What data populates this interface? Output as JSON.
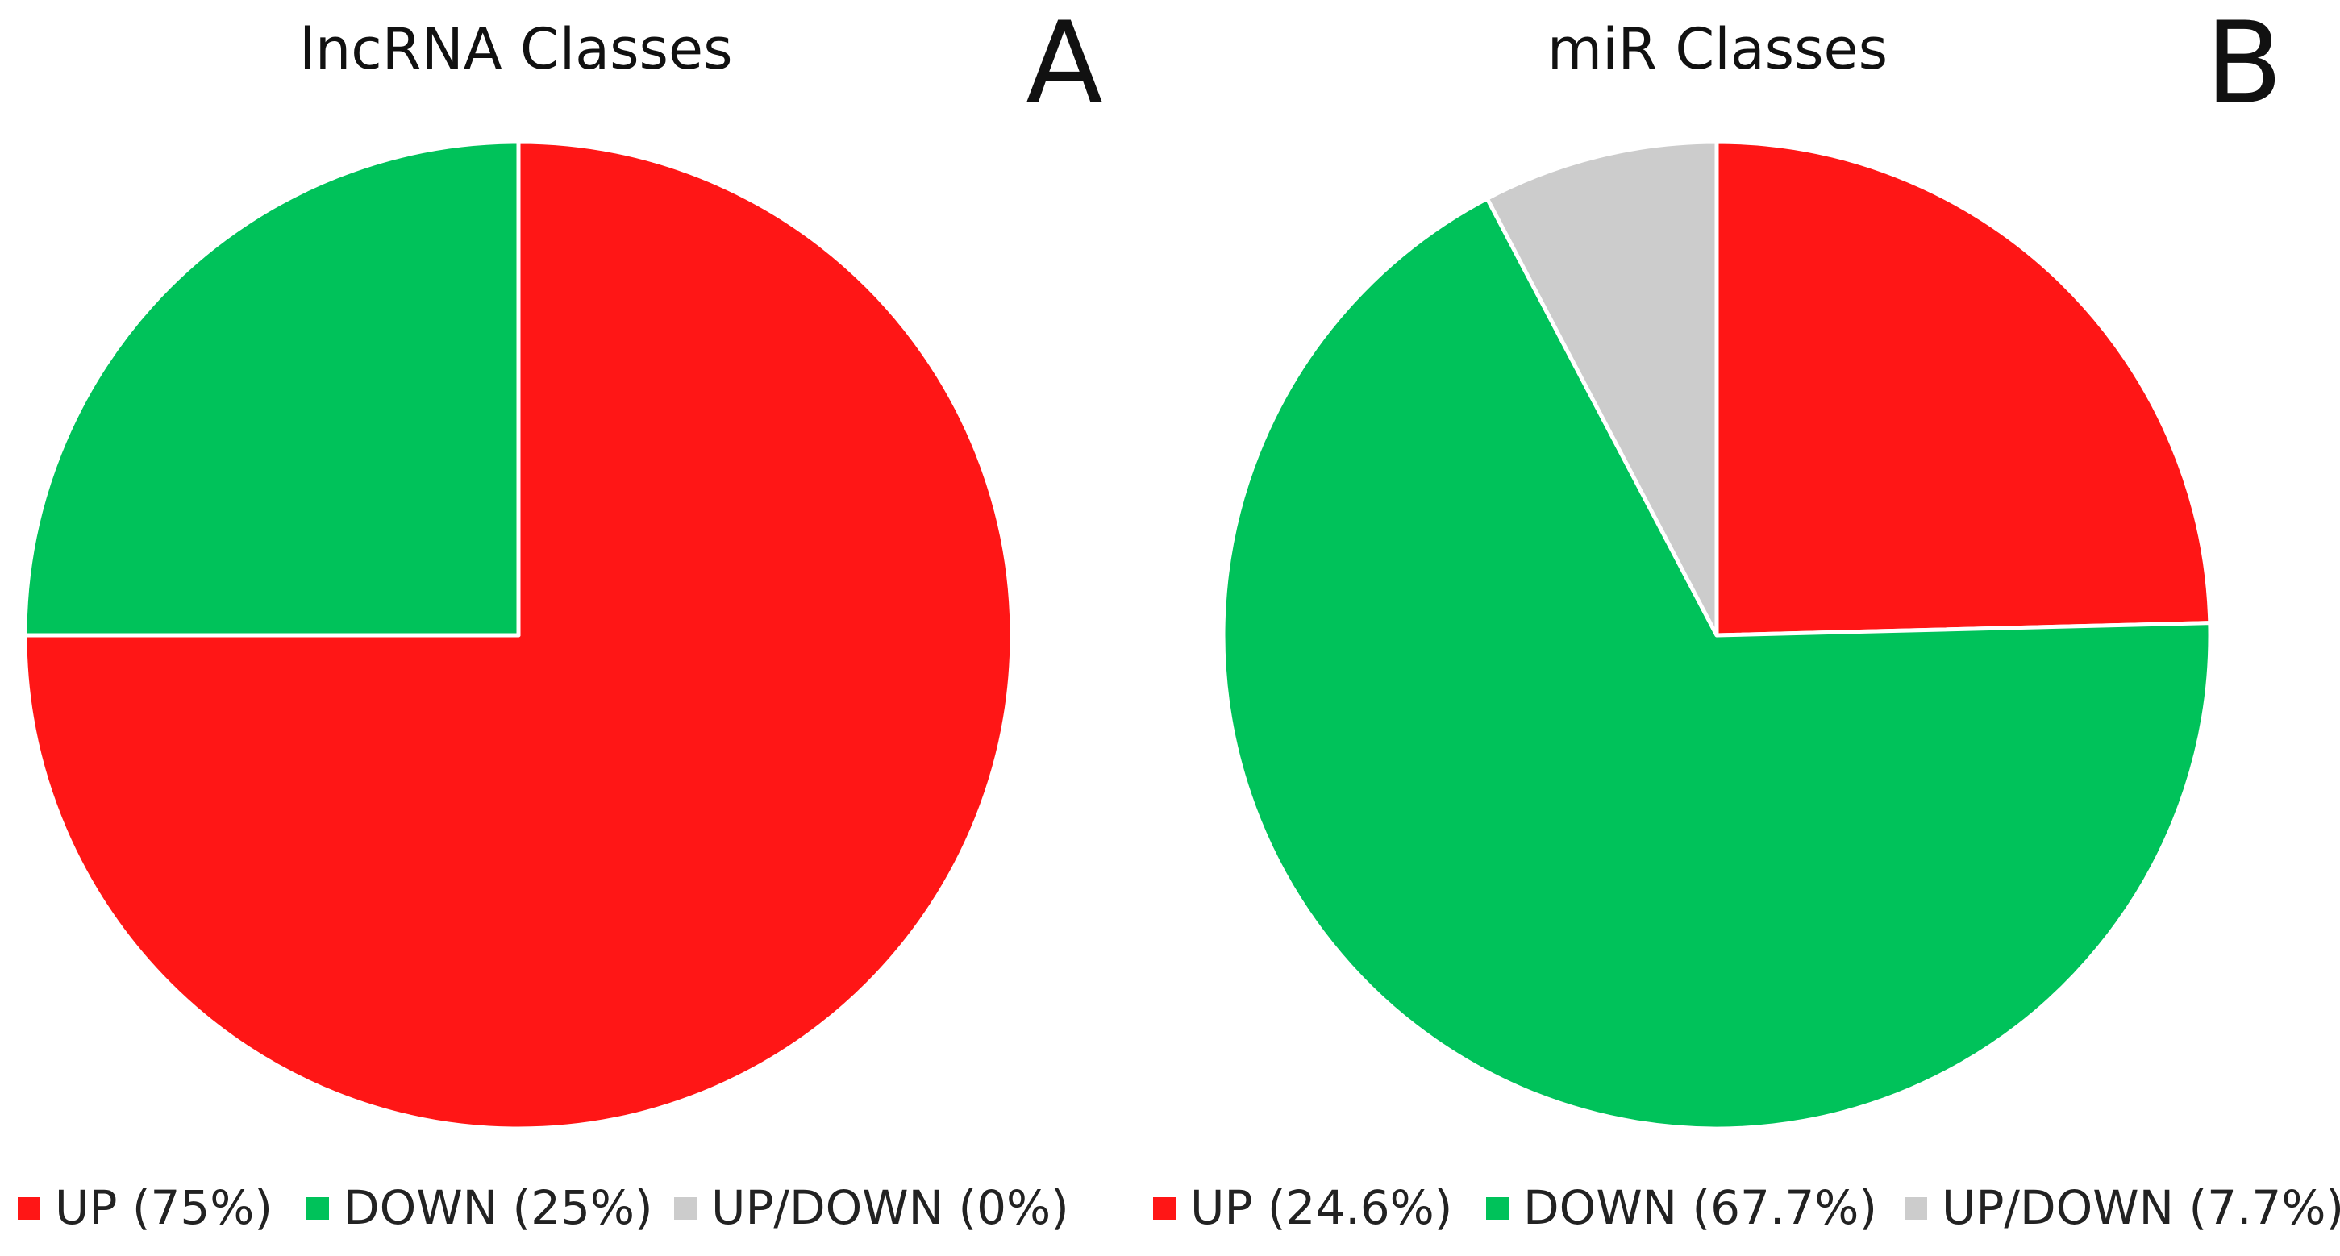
{
  "chart_data": [
    {
      "type": "pie",
      "title": "lncRNA Classes",
      "panel_label": "A",
      "categories": [
        "UP (75%)",
        "DOWN (25%)",
        "UP/DOWN (0%)"
      ],
      "values": [
        75,
        25,
        0
      ],
      "colors": [
        "#ff1616",
        "#00c25a",
        "#cccccc"
      ]
    },
    {
      "type": "pie",
      "title": "miR Classes",
      "panel_label": "B",
      "categories": [
        "UP (24.6%)",
        "DOWN (67.7%)",
        "UP/DOWN (7.7%)"
      ],
      "values": [
        24.6,
        67.7,
        7.7
      ],
      "colors": [
        "#ff1616",
        "#00c25a",
        "#cccccc"
      ]
    }
  ]
}
